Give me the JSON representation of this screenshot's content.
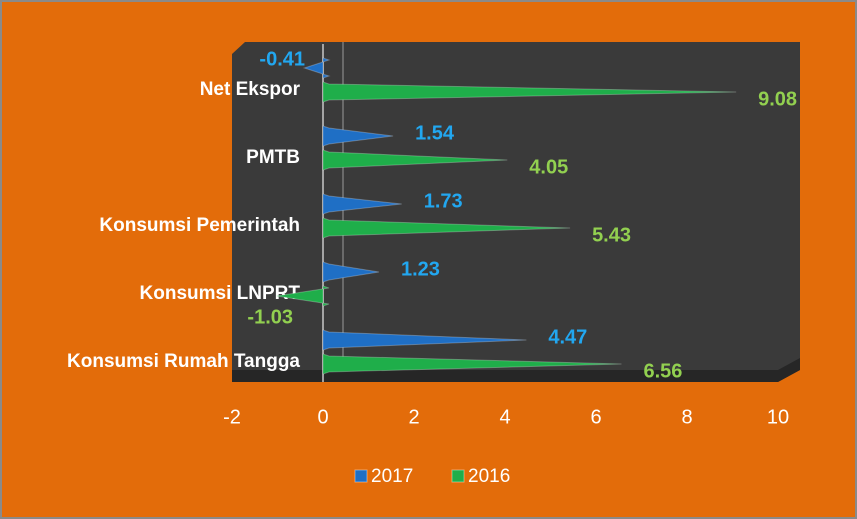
{
  "chart_data": {
    "type": "bar",
    "orientation": "horizontal",
    "categories": [
      "Net Ekspor",
      "PMTB",
      "Konsumsi Pemerintah",
      "Konsumsi LNPRT",
      "Konsumsi Rumah Tangga"
    ],
    "series": [
      {
        "name": "2017",
        "color": "#1f6fc5",
        "label_color": "#22a7f0",
        "values": [
          -0.41,
          1.54,
          1.73,
          1.23,
          4.47
        ]
      },
      {
        "name": "2016",
        "color": "#1fae4a",
        "label_color": "#92d050",
        "values": [
          9.08,
          4.05,
          5.43,
          -1.03,
          6.56
        ]
      }
    ],
    "xlim": [
      -2,
      10
    ],
    "xticks": [
      -2,
      0,
      2,
      4,
      6,
      8,
      10
    ],
    "legend": "bottom"
  }
}
